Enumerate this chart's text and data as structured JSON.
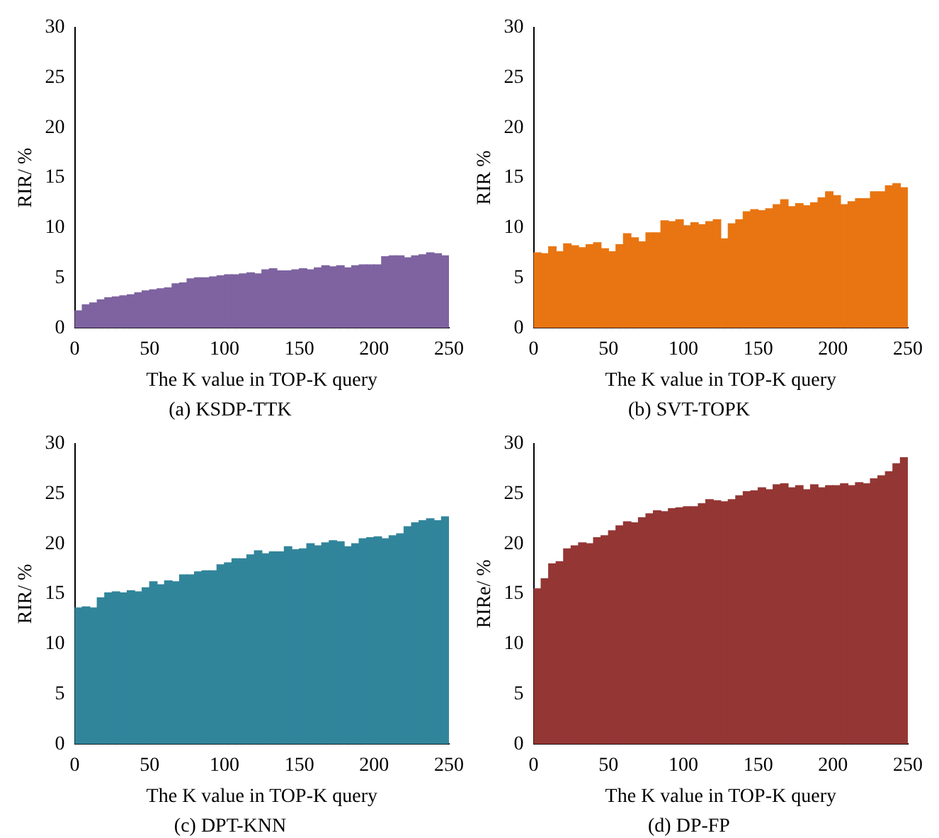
{
  "chart_data": [
    {
      "type": "histogram",
      "title": "(a) KSDP-TTK",
      "xlabel": "The K value in TOP-K query",
      "ylabel": "RIR/ %",
      "color": "#7e63a0",
      "bins": [
        0,
        5,
        10,
        15,
        20,
        25,
        30,
        35,
        40,
        45,
        50,
        55,
        60,
        65,
        70,
        75,
        80,
        85,
        90,
        95,
        100,
        105,
        110,
        115,
        120,
        125,
        130,
        135,
        140,
        145,
        150,
        155,
        160,
        165,
        170,
        175,
        180,
        185,
        190,
        195,
        200,
        205,
        210,
        215,
        220,
        225,
        230,
        235,
        240,
        245,
        250
      ],
      "values": [
        1.7,
        2.3,
        2.5,
        2.8,
        3.0,
        3.1,
        3.2,
        3.3,
        3.5,
        3.7,
        3.8,
        3.9,
        4.0,
        4.4,
        4.5,
        4.9,
        5.0,
        5.0,
        5.1,
        5.2,
        5.3,
        5.3,
        5.4,
        5.5,
        5.4,
        5.8,
        5.9,
        5.7,
        5.7,
        5.8,
        5.9,
        5.8,
        6.0,
        6.2,
        6.1,
        6.2,
        6.0,
        6.2,
        6.3,
        6.3,
        6.3,
        7.1,
        7.2,
        7.2,
        7.0,
        7.2,
        7.3,
        7.5,
        7.4,
        7.2
      ],
      "xlim": [
        0,
        250
      ],
      "xticks": [
        0,
        50,
        100,
        150,
        200,
        250
      ],
      "ylim": [
        0,
        30
      ],
      "yticks": [
        0,
        5,
        10,
        15,
        20,
        25,
        30
      ]
    },
    {
      "type": "histogram",
      "title": "(b) SVT-TOPK",
      "xlabel": "The K value in TOP-K query",
      "ylabel": "RIR %",
      "color": "#e87511",
      "bins": [
        0,
        5,
        10,
        15,
        20,
        25,
        30,
        35,
        40,
        45,
        50,
        55,
        60,
        65,
        70,
        75,
        80,
        85,
        90,
        95,
        100,
        105,
        110,
        115,
        120,
        125,
        130,
        135,
        140,
        145,
        150,
        155,
        160,
        165,
        170,
        175,
        180,
        185,
        190,
        195,
        200,
        205,
        210,
        215,
        220,
        225,
        230,
        235,
        240,
        245,
        250
      ],
      "values": [
        7.5,
        7.4,
        8.1,
        7.6,
        8.4,
        8.2,
        8.0,
        8.3,
        8.5,
        7.9,
        7.6,
        8.3,
        9.4,
        9.0,
        8.6,
        9.5,
        9.5,
        10.7,
        10.6,
        10.8,
        10.2,
        10.5,
        10.3,
        10.6,
        10.8,
        8.9,
        10.4,
        10.8,
        11.6,
        11.8,
        11.7,
        11.9,
        12.3,
        12.8,
        12.1,
        12.4,
        12.2,
        12.5,
        13.0,
        13.6,
        13.2,
        12.3,
        12.6,
        12.9,
        12.9,
        13.6,
        13.6,
        14.2,
        14.4,
        14.0
      ],
      "xlim": [
        0,
        250
      ],
      "xticks": [
        0,
        50,
        100,
        150,
        200,
        250
      ],
      "ylim": [
        0,
        30
      ],
      "yticks": [
        0,
        5,
        10,
        15,
        20,
        25,
        30
      ]
    },
    {
      "type": "histogram",
      "title": "(c) DPT-KNN",
      "xlabel": "The K value in TOP-K query",
      "ylabel": "RIR/ %",
      "color": "#31859b",
      "bins": [
        0,
        5,
        10,
        15,
        20,
        25,
        30,
        35,
        40,
        45,
        50,
        55,
        60,
        65,
        70,
        75,
        80,
        85,
        90,
        95,
        100,
        105,
        110,
        115,
        120,
        125,
        130,
        135,
        140,
        145,
        150,
        155,
        160,
        165,
        170,
        175,
        180,
        185,
        190,
        195,
        200,
        205,
        210,
        215,
        220,
        225,
        230,
        235,
        240,
        245,
        250
      ],
      "values": [
        13.6,
        13.7,
        13.6,
        14.6,
        15.1,
        15.2,
        15.1,
        15.3,
        15.2,
        15.6,
        16.2,
        15.9,
        16.3,
        16.2,
        16.9,
        16.9,
        17.2,
        17.3,
        17.3,
        17.9,
        18.1,
        18.5,
        18.5,
        18.9,
        19.3,
        19.0,
        19.2,
        19.2,
        19.7,
        19.4,
        19.5,
        20.0,
        19.8,
        20.1,
        20.3,
        20.2,
        19.7,
        20.0,
        20.5,
        20.6,
        20.7,
        20.5,
        20.8,
        21.0,
        21.7,
        22.1,
        22.3,
        22.5,
        22.3,
        22.7
      ],
      "xlim": [
        0,
        250
      ],
      "xticks": [
        0,
        50,
        100,
        150,
        200,
        250
      ],
      "ylim": [
        0,
        30
      ],
      "yticks": [
        0,
        5,
        10,
        15,
        20,
        25,
        30
      ]
    },
    {
      "type": "histogram",
      "title": "(d) DP-FP",
      "xlabel": "The K value in TOP-K query",
      "ylabel": "RIRe/ %",
      "color": "#943634",
      "bins": [
        0,
        5,
        10,
        15,
        20,
        25,
        30,
        35,
        40,
        45,
        50,
        55,
        60,
        65,
        70,
        75,
        80,
        85,
        90,
        95,
        100,
        105,
        110,
        115,
        120,
        125,
        130,
        135,
        140,
        145,
        150,
        155,
        160,
        165,
        170,
        175,
        180,
        185,
        190,
        195,
        200,
        205,
        210,
        215,
        220,
        225,
        230,
        235,
        240,
        245,
        250
      ],
      "values": [
        15.5,
        16.5,
        18.0,
        18.2,
        19.5,
        19.8,
        20.1,
        20.0,
        20.6,
        20.8,
        21.3,
        21.8,
        22.2,
        22.1,
        22.6,
        23.0,
        23.3,
        23.2,
        23.5,
        23.6,
        23.7,
        23.7,
        24.0,
        24.4,
        24.3,
        24.2,
        24.4,
        24.8,
        25.2,
        25.3,
        25.6,
        25.4,
        25.9,
        26.0,
        25.6,
        25.8,
        25.4,
        25.9,
        25.6,
        25.8,
        25.8,
        26.0,
        25.8,
        26.1,
        26.0,
        26.5,
        26.8,
        27.2,
        28.0,
        28.6
      ],
      "xlim": [
        0,
        250
      ],
      "xticks": [
        0,
        50,
        100,
        150,
        200,
        250
      ],
      "ylim": [
        0,
        30
      ],
      "yticks": [
        0,
        5,
        10,
        15,
        20,
        25,
        30
      ]
    }
  ]
}
